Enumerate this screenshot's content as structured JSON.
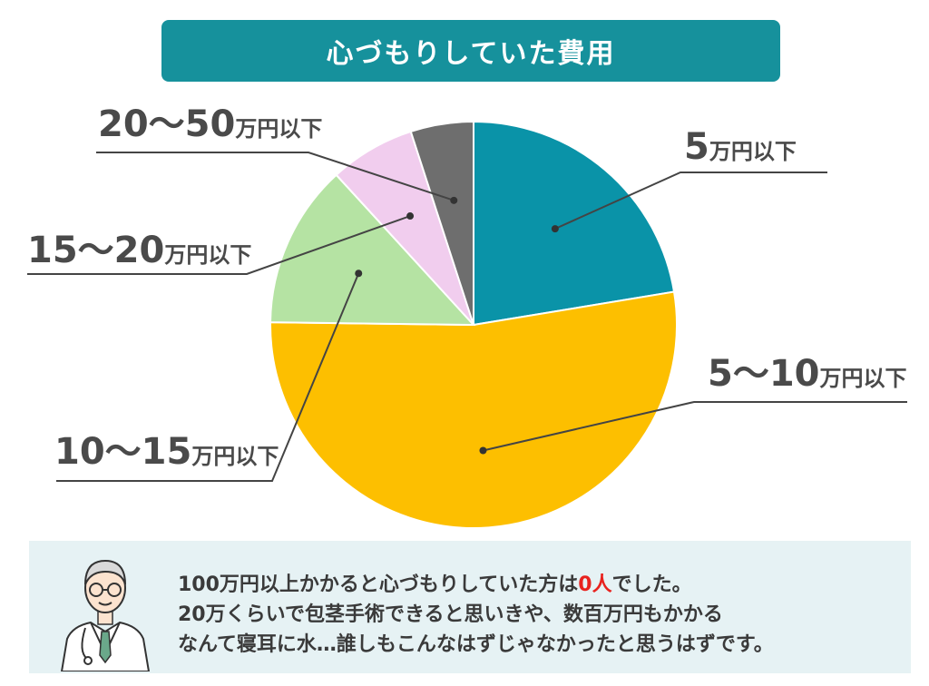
{
  "title": "心づもりしていた費用",
  "chart_data": {
    "type": "pie",
    "title": "心づもりしていた費用",
    "slices": [
      {
        "label": "5万円以下",
        "num": "5",
        "unit": "万円以下",
        "value": 22.4,
        "color": "#0a93a8"
      },
      {
        "label": "5〜10万円以下",
        "num": "5〜10",
        "unit": "万円以下",
        "value": 52.8,
        "color": "#fdbf00"
      },
      {
        "label": "10〜15万円以下",
        "num": "10〜15",
        "unit": "万円以下",
        "value": 13.0,
        "color": "#b5e3a3"
      },
      {
        "label": "15〜20万円以下",
        "num": "15〜20",
        "unit": "万円以下",
        "value": 6.8,
        "color": "#f1cdee"
      },
      {
        "label": "20〜50万円以下",
        "num": "20〜50",
        "unit": "万円以下",
        "value": 5.0,
        "color": "#6e6e6e"
      }
    ]
  },
  "note": {
    "line1_pre": "100万円以上かかると心づもりしていた方は",
    "line1_highlight": "0人",
    "line1_post": "でした。",
    "line2": "20万くらいで包茎手術できると思いきや、数百万円もかかる",
    "line3": "なんて寝耳に水…誰しもこんなはずじゃなかったと思うはずです。"
  },
  "colors": {
    "title_bg": "#16919c",
    "note_bg": "#e6f2f4",
    "highlight": "#e8231f"
  }
}
